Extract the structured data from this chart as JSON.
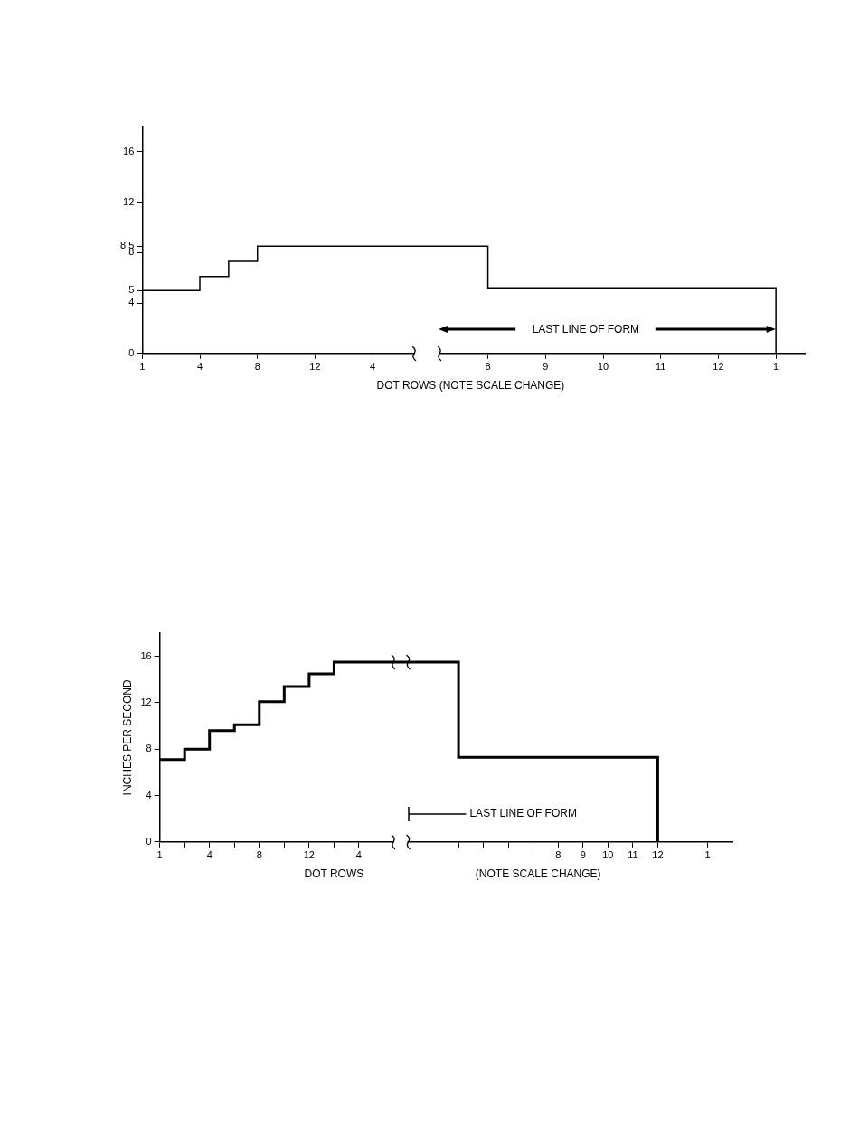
{
  "chart_data": [
    {
      "type": "step",
      "xlabel": "DOT ROWS (NOTE SCALE CHANGE)",
      "categories": [
        "1",
        null,
        "4",
        null,
        "8",
        null,
        "12",
        null,
        "4",
        null,
        null,
        null,
        "8",
        null,
        "9",
        null,
        "10",
        null,
        "11",
        null,
        "12",
        null,
        "1",
        null
      ],
      "series": [
        {
          "color": "#000000",
          "values": [
            5,
            5,
            6.1,
            7.3,
            8.5,
            8.5,
            8.5,
            8.5,
            8.5,
            8.5,
            8.5,
            8.5,
            5.2,
            5.2,
            5.2,
            5.2,
            5.2,
            5.2,
            5.2,
            5.2,
            5.2,
            5.2,
            0,
            null
          ]
        }
      ],
      "ylim": [
        0,
        18
      ],
      "yticks": [
        0,
        4,
        5,
        8,
        8.5,
        12,
        16
      ],
      "annotations": [
        "LAST LINE OF FORM"
      ],
      "marker": "none",
      "legend": false
    },
    {
      "type": "step",
      "xlabel": "DOT ROWS",
      "ylabel": "INCHES PER SECOND",
      "categories": [
        "1",
        null,
        "4",
        null,
        "8",
        null,
        "12",
        null,
        "4",
        null,
        null,
        null,
        null,
        null,
        null,
        null,
        "8",
        "9",
        "10",
        "11",
        "12",
        null,
        "1",
        null
      ],
      "series": [
        {
          "color": "#000000",
          "values": [
            7.1,
            8,
            9.6,
            10.1,
            12.1,
            13.4,
            14.5,
            15.5,
            15.5,
            15.5,
            15.5,
            15.5,
            7.3,
            7.3,
            7.3,
            7.3,
            7.3,
            7.3,
            7.3,
            7.3,
            0,
            null,
            null,
            null
          ]
        }
      ],
      "ylim": [
        0,
        18
      ],
      "yticks": [
        0,
        4,
        8,
        12,
        16
      ],
      "annotations": [
        "LAST LINE OF FORM",
        "(NOTE SCALE CHANGE)"
      ],
      "marker": "none",
      "legend": false
    }
  ]
}
